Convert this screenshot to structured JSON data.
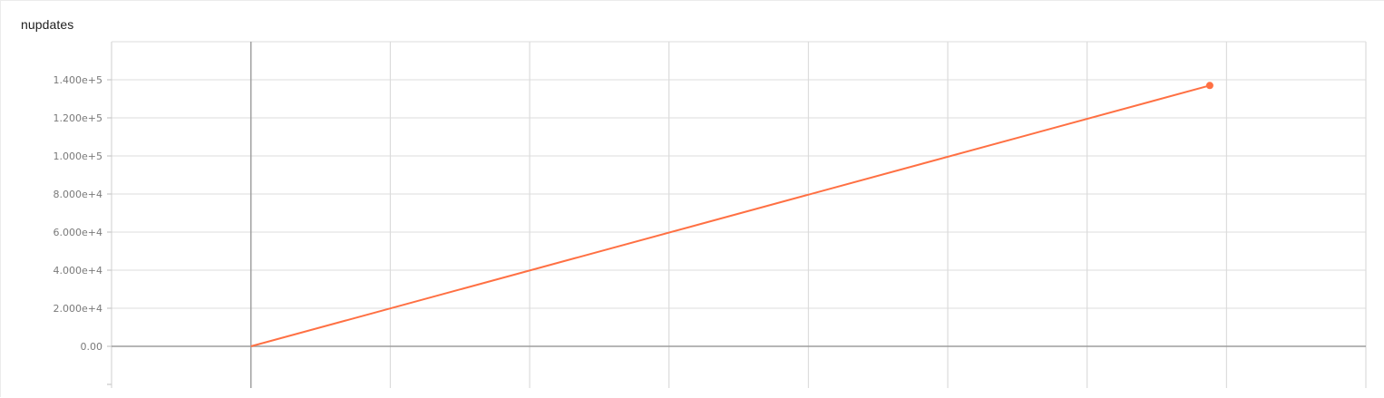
{
  "card": {
    "title": "nupdates"
  },
  "chart_data": {
    "type": "line",
    "title": "nupdates",
    "xlabel": "",
    "ylabel": "",
    "grid": true,
    "xlim": [
      -50000,
      400000
    ],
    "ylim": [
      -20000,
      160000
    ],
    "y_ticks": [
      0,
      20000,
      40000,
      60000,
      80000,
      100000,
      120000,
      140000
    ],
    "y_tick_labels": [
      "0.00",
      "2.000e+4",
      "4.000e+4",
      "6.000e+4",
      "8.000e+4",
      "1.000e+5",
      "1.200e+5",
      "1.400e+5"
    ],
    "x_gridlines": [
      -50000,
      0,
      50000,
      100000,
      150000,
      200000,
      250000,
      300000,
      350000,
      400000
    ],
    "series": [
      {
        "color": "#ff7043",
        "x": [
          0,
          344000
        ],
        "y": [
          0,
          137000
        ]
      }
    ]
  }
}
